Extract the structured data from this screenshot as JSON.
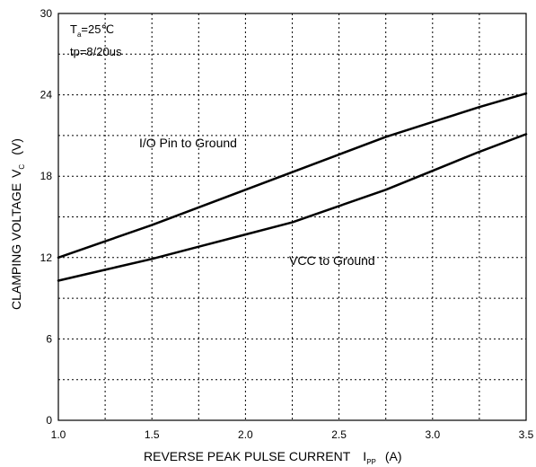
{
  "chart_data": {
    "type": "line",
    "conditions": {
      "temp_main": "T",
      "temp_sub": "a",
      "temp_value": "=25℃",
      "pulse": "tp=8/20us"
    },
    "xlabel_main": "REVERSE PEAK PULSE CURRENT",
    "xlabel_symbol_main": "I",
    "xlabel_symbol_sub": "PP",
    "xlabel_unit": "(A)",
    "ylabel_main": "CLAMPING VOLTAGE",
    "ylabel_symbol_main": "V",
    "ylabel_symbol_sub": "C",
    "ylabel_unit": "(V)",
    "xlim": [
      1.0,
      3.5
    ],
    "ylim": [
      0,
      30
    ],
    "x_ticks": [
      "1.0",
      "1.5",
      "2.0",
      "2.5",
      "3.0",
      "3.5"
    ],
    "y_ticks": [
      "0",
      "6",
      "12",
      "18",
      "24",
      "30"
    ],
    "grid": true,
    "series": [
      {
        "name": "I/O Pin to Ground",
        "x": [
          1.0,
          1.25,
          1.5,
          1.75,
          2.0,
          2.25,
          2.5,
          2.75,
          3.0,
          3.25,
          3.5
        ],
        "y": [
          12.0,
          13.2,
          14.4,
          15.7,
          17.0,
          18.3,
          19.6,
          20.9,
          22.0,
          23.1,
          24.1
        ]
      },
      {
        "name": "VCC to Ground",
        "x": [
          1.0,
          1.25,
          1.5,
          1.75,
          2.0,
          2.25,
          2.5,
          2.75,
          3.0,
          3.25,
          3.5
        ],
        "y": [
          10.3,
          11.1,
          11.9,
          12.8,
          13.7,
          14.6,
          15.8,
          17.0,
          18.4,
          19.8,
          21.1
        ]
      }
    ]
  }
}
